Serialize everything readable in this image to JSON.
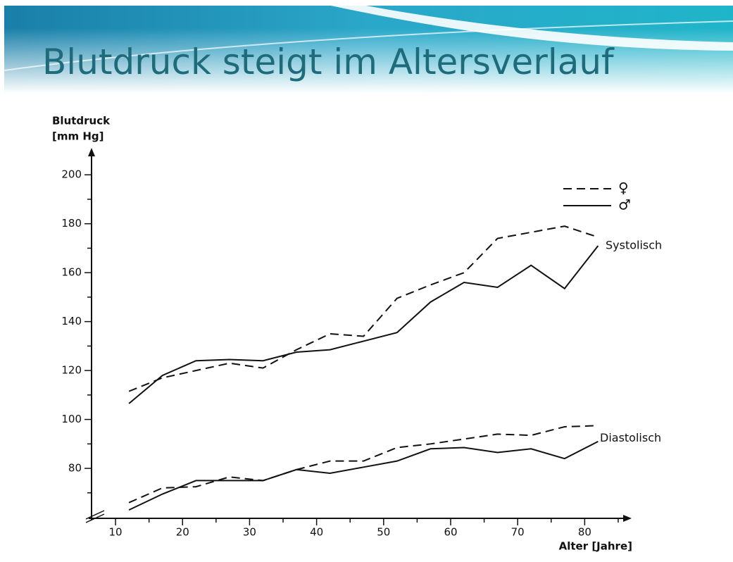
{
  "chart_data": {
    "type": "line",
    "title": "Blutdruck steigt im Altersverlauf",
    "y_label": [
      "Blutdruck",
      "[mm Hg]"
    ],
    "x_label": "Alter [Jahre]",
    "annotations": [
      "Systolisch",
      "Diastolisch"
    ],
    "x": [
      12,
      17,
      22,
      27,
      32,
      37,
      42,
      47,
      52,
      57,
      62,
      67,
      72,
      77,
      82
    ],
    "series": [
      {
        "name": "♀",
        "style": "dashed",
        "color": "#111111",
        "values": [
          111.5,
          117,
          120,
          123,
          121,
          128.5,
          135,
          134,
          149.5,
          155,
          160,
          174,
          176.5,
          179,
          174.5
        ]
      },
      {
        "name": "♂",
        "style": "solid",
        "color": "#111111",
        "values": [
          106.5,
          118,
          124,
          124.5,
          124,
          127.5,
          128.5,
          132,
          135.5,
          148,
          156,
          154,
          163,
          153.5,
          171
        ]
      },
      {
        "name": "♀",
        "style": "dashed",
        "color": "#111111",
        "values": [
          66,
          72,
          72.5,
          76.5,
          75,
          79.5,
          83,
          83,
          88.5,
          90,
          92,
          94,
          93.5,
          97,
          97.5
        ]
      },
      {
        "name": "♂",
        "style": "solid",
        "color": "#111111",
        "values": [
          63,
          69.5,
          75,
          75,
          75,
          79.5,
          78,
          80.5,
          83,
          88,
          88.5,
          86.5,
          88,
          84,
          91
        ]
      }
    ],
    "xlim": [
      6,
      87
    ],
    "ylim": [
      59,
      211
    ],
    "xticks": [
      10,
      20,
      30,
      40,
      50,
      60,
      70,
      80
    ],
    "x_minor_ticks": [
      15,
      25,
      35,
      45,
      55,
      65,
      75,
      85
    ],
    "yticks": [
      80,
      100,
      120,
      140,
      160,
      180,
      200
    ],
    "y_minor_ticks": [
      70,
      90,
      110,
      130,
      150,
      170,
      190
    ],
    "grid": false,
    "legend": "upper right"
  }
}
